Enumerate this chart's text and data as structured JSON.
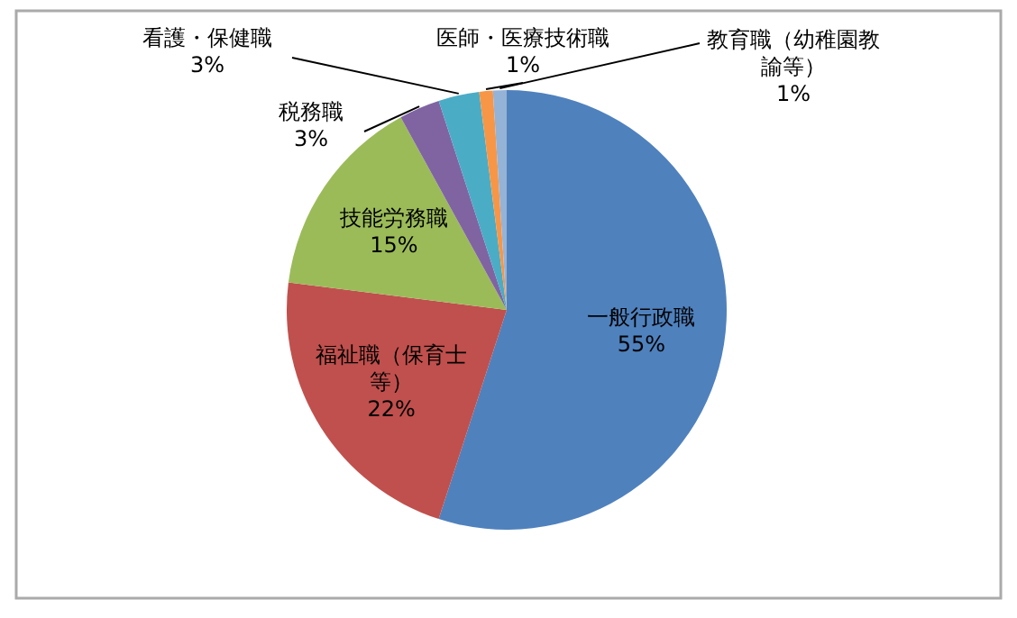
{
  "chart_data": {
    "type": "pie",
    "categories": [
      "一般行政職",
      "福祉職（保育士等）",
      "技能労務職",
      "税務職",
      "看護・保健職",
      "医師・医療技術職",
      "教育職（幼稚園教諭等）"
    ],
    "values": [
      55,
      22,
      15,
      3,
      3,
      1,
      1
    ],
    "value_labels": [
      "55%",
      "22%",
      "15%",
      "3%",
      "3%",
      "1%",
      "1%"
    ],
    "colors": [
      "#4f81bd",
      "#c0504d",
      "#9bbb59",
      "#8064a2",
      "#4bacc6",
      "#f79646",
      "#95b3d7"
    ],
    "legend": false
  }
}
